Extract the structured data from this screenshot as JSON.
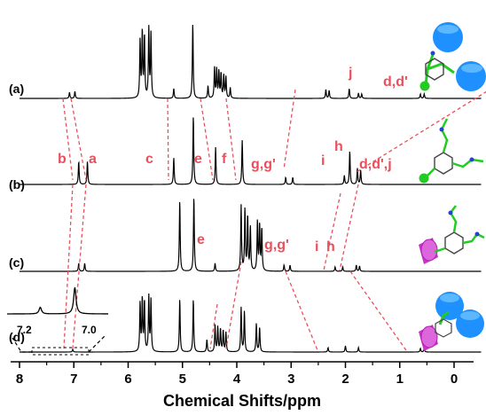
{
  "chart_data": {
    "type": "line",
    "title": "",
    "xlabel": "Chemical Shifts/ppm",
    "ylabel": "",
    "xlim": [
      8,
      -0.5
    ],
    "x_reversed": true,
    "x_ticks": [
      8,
      7,
      6,
      5,
      4,
      3,
      2,
      1,
      0
    ],
    "x_tick_labels": [
      "8",
      "7",
      "6",
      "5",
      "4",
      "3",
      "2",
      "1",
      "0"
    ],
    "grid": false,
    "legend": "none",
    "colors": {
      "trace": "#000000",
      "annotation": "#e8505b",
      "blue_unit": "#1e90ff",
      "magenta_unit": "#cc33cc",
      "green_unit": "#22cc22"
    },
    "series": [
      {
        "name": "(a)",
        "peaks": [
          {
            "x": 7.08,
            "h": 0.07
          },
          {
            "x": 6.98,
            "h": 0.08
          },
          {
            "x": 5.78,
            "h": 0.65
          },
          {
            "x": 5.74,
            "h": 0.75
          },
          {
            "x": 5.7,
            "h": 0.7
          },
          {
            "x": 5.62,
            "h": 0.78
          },
          {
            "x": 5.58,
            "h": 0.72
          },
          {
            "x": 5.16,
            "h": 0.11
          },
          {
            "x": 4.81,
            "h": 0.85
          },
          {
            "x": 4.53,
            "h": 0.14
          },
          {
            "x": 4.41,
            "h": 0.34
          },
          {
            "x": 4.37,
            "h": 0.32
          },
          {
            "x": 4.33,
            "h": 0.3
          },
          {
            "x": 4.29,
            "h": 0.28
          },
          {
            "x": 4.24,
            "h": 0.26
          },
          {
            "x": 4.2,
            "h": 0.24
          },
          {
            "x": 4.12,
            "h": 0.12
          },
          {
            "x": 2.36,
            "h": 0.1
          },
          {
            "x": 2.3,
            "h": 0.09
          },
          {
            "x": 1.93,
            "h": 0.11
          },
          {
            "x": 1.76,
            "h": 0.06
          },
          {
            "x": 1.7,
            "h": 0.05
          },
          {
            "x": 0.62,
            "h": 0.05
          },
          {
            "x": 0.55,
            "h": 0.05
          }
        ]
      },
      {
        "name": "(b)",
        "peaks": [
          {
            "x": 6.91,
            "h": 0.26
          },
          {
            "x": 6.75,
            "h": 0.26
          },
          {
            "x": 5.16,
            "h": 0.3
          },
          {
            "x": 4.8,
            "h": 0.78
          },
          {
            "x": 4.39,
            "h": 0.42
          },
          {
            "x": 3.9,
            "h": 0.5
          },
          {
            "x": 3.1,
            "h": 0.08
          },
          {
            "x": 2.97,
            "h": 0.08
          },
          {
            "x": 2.02,
            "h": 0.1
          },
          {
            "x": 1.92,
            "h": 0.38
          },
          {
            "x": 1.78,
            "h": 0.18
          },
          {
            "x": 1.72,
            "h": 0.16
          }
        ]
      },
      {
        "name": "(c)",
        "peaks": [
          {
            "x": 6.91,
            "h": 0.09
          },
          {
            "x": 6.8,
            "h": 0.09
          },
          {
            "x": 5.05,
            "h": 0.8
          },
          {
            "x": 4.79,
            "h": 0.85
          },
          {
            "x": 4.4,
            "h": 0.09
          },
          {
            "x": 3.92,
            "h": 0.74
          },
          {
            "x": 3.85,
            "h": 0.7
          },
          {
            "x": 3.8,
            "h": 0.62
          },
          {
            "x": 3.75,
            "h": 0.5
          },
          {
            "x": 3.62,
            "h": 0.56
          },
          {
            "x": 3.58,
            "h": 0.52
          },
          {
            "x": 3.54,
            "h": 0.48
          },
          {
            "x": 3.13,
            "h": 0.07
          },
          {
            "x": 3.02,
            "h": 0.07
          },
          {
            "x": 2.19,
            "h": 0.05
          },
          {
            "x": 2.05,
            "h": 0.05
          },
          {
            "x": 1.8,
            "h": 0.07
          },
          {
            "x": 1.74,
            "h": 0.06
          }
        ]
      },
      {
        "name": "(d)",
        "peaks": [
          {
            "x": 7.02,
            "h": 0.03
          },
          {
            "x": 5.78,
            "h": 0.55
          },
          {
            "x": 5.74,
            "h": 0.6
          },
          {
            "x": 5.7,
            "h": 0.57
          },
          {
            "x": 5.62,
            "h": 0.62
          },
          {
            "x": 5.58,
            "h": 0.58
          },
          {
            "x": 5.05,
            "h": 0.6
          },
          {
            "x": 4.8,
            "h": 0.6
          },
          {
            "x": 4.55,
            "h": 0.14
          },
          {
            "x": 4.4,
            "h": 0.3
          },
          {
            "x": 4.35,
            "h": 0.28
          },
          {
            "x": 4.3,
            "h": 0.26
          },
          {
            "x": 4.25,
            "h": 0.24
          },
          {
            "x": 4.2,
            "h": 0.22
          },
          {
            "x": 3.92,
            "h": 0.5
          },
          {
            "x": 3.86,
            "h": 0.46
          },
          {
            "x": 3.64,
            "h": 0.32
          },
          {
            "x": 3.58,
            "h": 0.28
          },
          {
            "x": 2.32,
            "h": 0.05
          },
          {
            "x": 2.0,
            "h": 0.07
          },
          {
            "x": 1.76,
            "h": 0.05
          },
          {
            "x": 0.62,
            "h": 0.04
          },
          {
            "x": 0.55,
            "h": 0.04
          }
        ]
      }
    ],
    "annotations": [
      "b",
      "a",
      "c",
      "e",
      "f",
      "g,g'",
      "i",
      "h",
      "d,d',j",
      "j",
      "d,d'",
      "e",
      "g,g'",
      "i",
      "h"
    ],
    "inset": {
      "series": "(d)",
      "x_tick_labels": [
        "7.2",
        "7.0"
      ],
      "peaks": [
        {
          "x": 7.16,
          "h": 0.25
        },
        {
          "x": 7.01,
          "h": 1.0
        }
      ]
    }
  }
}
